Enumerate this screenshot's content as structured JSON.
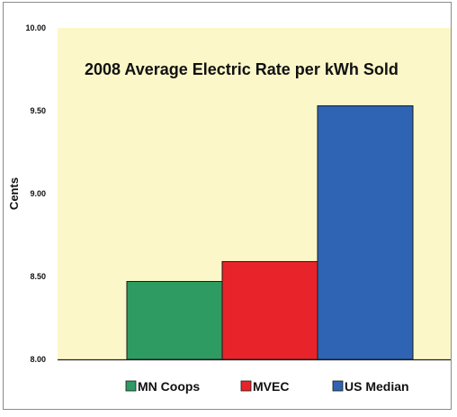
{
  "chart_data": {
    "type": "bar",
    "title": "2008 Average Electric Rate per kWh Sold",
    "ylabel": "Cents",
    "xlabel": "",
    "ylim": [
      8.0,
      10.0
    ],
    "yticks": [
      "8.00",
      "8.50",
      "9.00",
      "9.50",
      "10.00"
    ],
    "categories": [
      "MN Coops",
      "MVEC",
      "US Median"
    ],
    "values": [
      8.47,
      8.59,
      9.53
    ],
    "colors": [
      "#2e9b63",
      "#e8242a",
      "#2f64b4"
    ],
    "plot_background": "#fbf7c8",
    "grid": false,
    "legend_position": "bottom"
  }
}
